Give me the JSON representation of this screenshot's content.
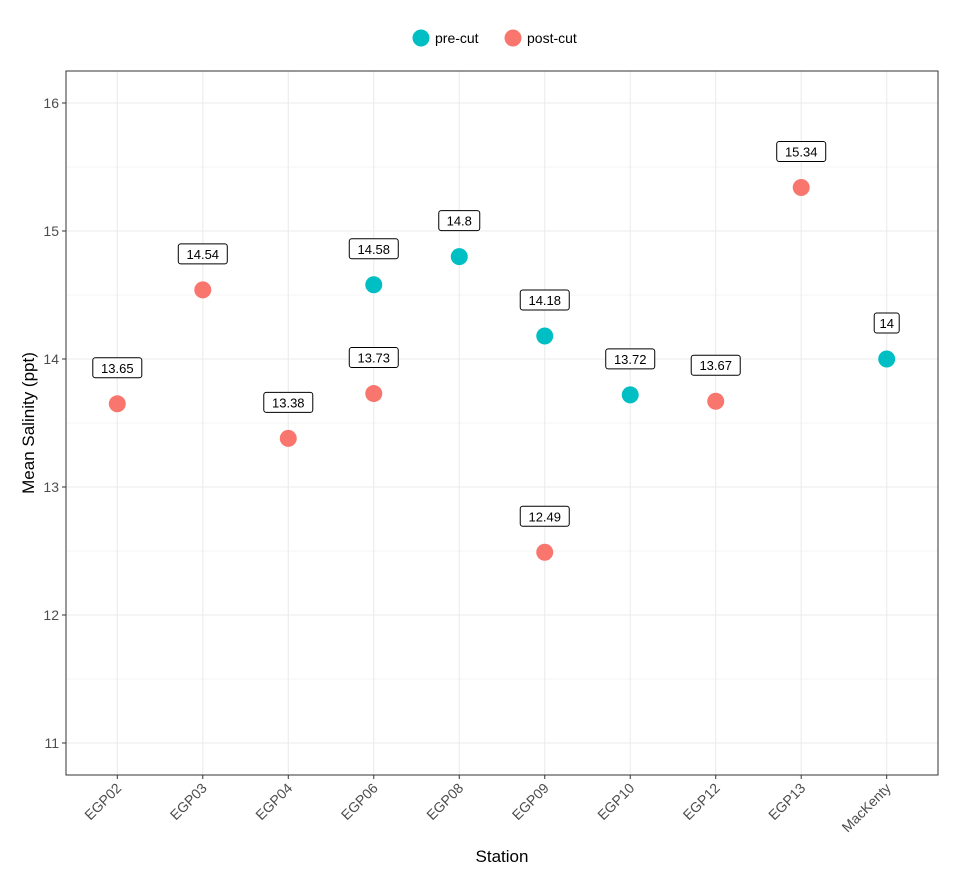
{
  "chart_data": {
    "type": "scatter",
    "xlabel": "Station",
    "ylabel": "Mean Salinity (ppt)",
    "categories": [
      "EGP02",
      "EGP03",
      "EGP04",
      "EGP06",
      "EGP08",
      "EGP09",
      "EGP10",
      "EGP12",
      "EGP13",
      "MacKenty"
    ],
    "ylim": [
      10.75,
      16.25
    ],
    "yticks": [
      11,
      12,
      13,
      14,
      15,
      16
    ],
    "grid": true,
    "legend_position": "top",
    "series": [
      {
        "name": "pre-cut",
        "color": "#00BFC4",
        "points": [
          {
            "x": "EGP06",
            "y": 14.58,
            "label": "14.58"
          },
          {
            "x": "EGP08",
            "y": 14.8,
            "label": "14.8"
          },
          {
            "x": "EGP09",
            "y": 14.18,
            "label": "14.18"
          },
          {
            "x": "EGP10",
            "y": 13.72,
            "label": "13.72"
          },
          {
            "x": "MacKenty",
            "y": 14.0,
            "label": "14"
          }
        ]
      },
      {
        "name": "post-cut",
        "color": "#F8766D",
        "points": [
          {
            "x": "EGP02",
            "y": 13.65,
            "label": "13.65"
          },
          {
            "x": "EGP03",
            "y": 14.54,
            "label": "14.54"
          },
          {
            "x": "EGP04",
            "y": 13.38,
            "label": "13.38"
          },
          {
            "x": "EGP06",
            "y": 13.73,
            "label": "13.73"
          },
          {
            "x": "EGP09",
            "y": 12.49,
            "label": "12.49"
          },
          {
            "x": "EGP12",
            "y": 13.67,
            "label": "13.67"
          },
          {
            "x": "EGP13",
            "y": 15.34,
            "label": "15.34"
          }
        ]
      }
    ]
  }
}
